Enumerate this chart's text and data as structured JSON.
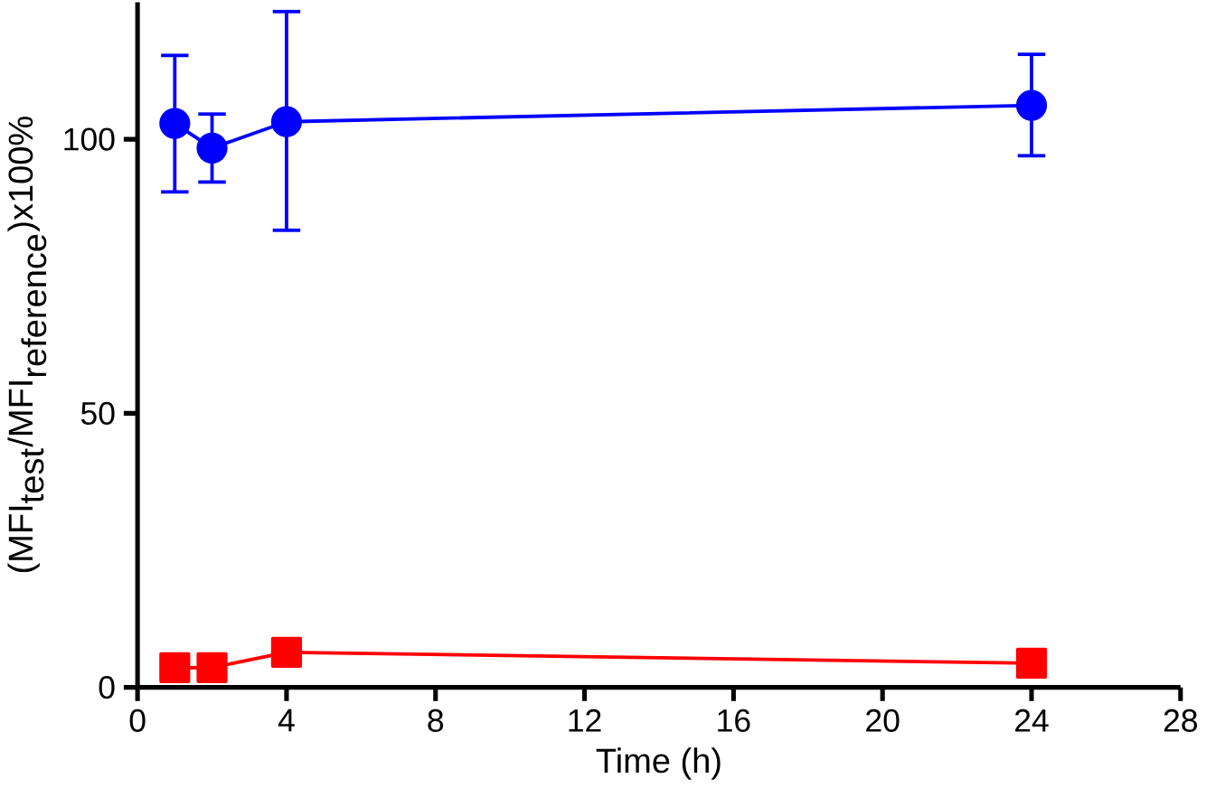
{
  "chart_data": {
    "type": "line",
    "xlabel": "Time (h)",
    "ylabel": "\\mbox{(MFI}_{\\mbox{test}}\\mbox{/MFI}_{\\mbox{reference}}\\mbox{)x100\\%}",
    "x": [
      1,
      2,
      4,
      24
    ],
    "series": [
      {
        "color": "#0000ff",
        "marker": "circle",
        "values": [
          102.9,
          98.4,
          103.2,
          106.2
        ],
        "errors": [
          [
            90.4,
            115.3
          ],
          [
            92.2,
            104.6
          ],
          [
            83.4,
            123.3
          ],
          [
            97.0,
            115.5
          ]
        ]
      },
      {
        "color": "#ff0000",
        "marker": "square",
        "values": [
          3.6,
          3.6,
          6.4,
          4.4
        ]
      }
    ],
    "xlim": [
      0,
      28
    ],
    "xticks": [
      0,
      4,
      8,
      12,
      16,
      20,
      24,
      28
    ],
    "ylim": [
      0,
      125
    ],
    "yticks": [
      0,
      50,
      100
    ],
    "grid": false
  }
}
